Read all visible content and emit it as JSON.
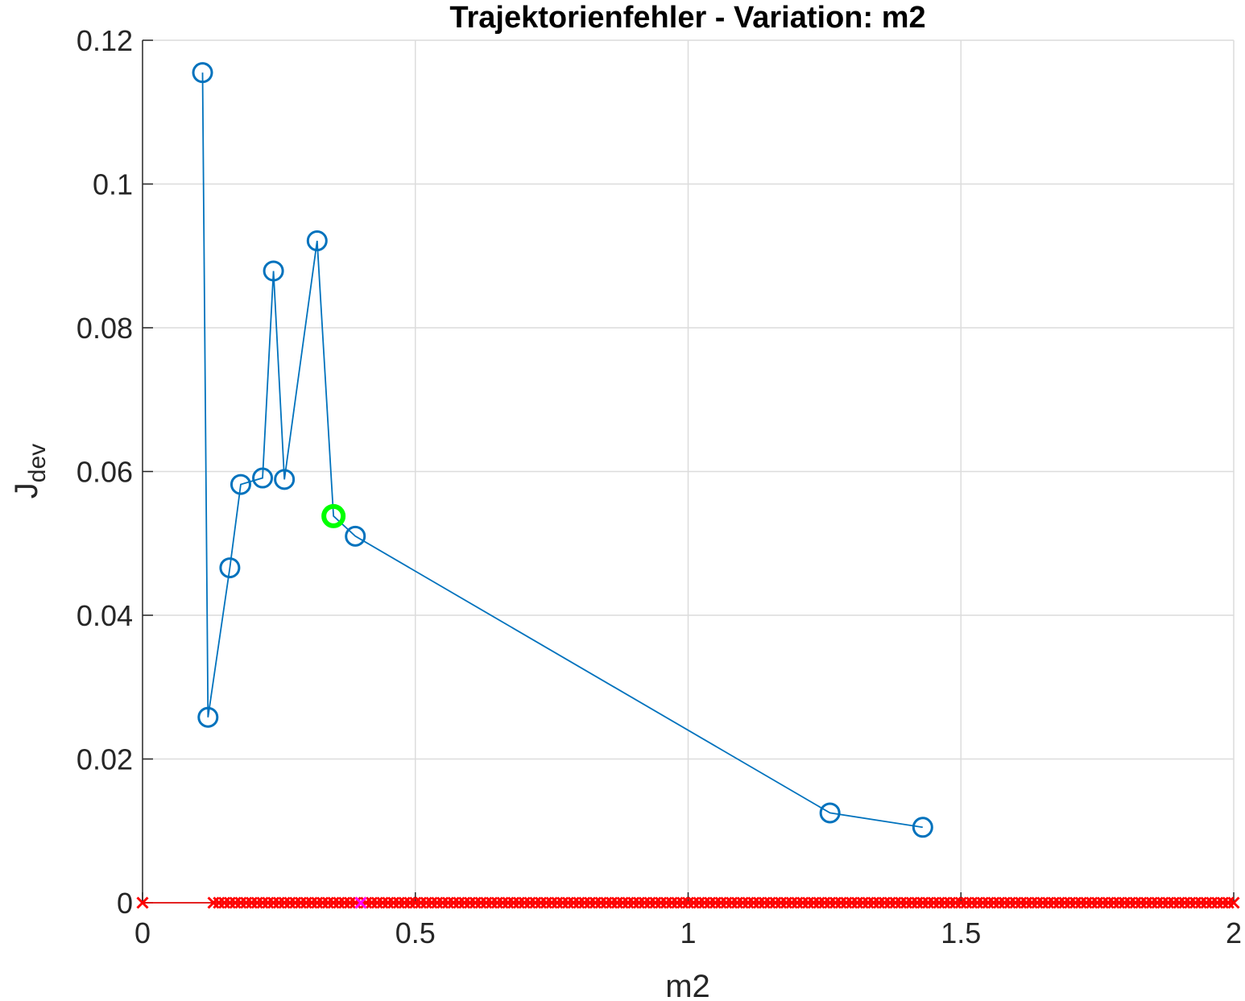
{
  "chart_data": {
    "type": "line",
    "title": "Trajektorienfehler - Variation: m2",
    "xlabel": "m2",
    "ylabel_main": "J",
    "ylabel_sub": "dev",
    "xlim": [
      0,
      2
    ],
    "ylim": [
      0,
      0.12
    ],
    "xticks": [
      0,
      0.5,
      1,
      1.5,
      2
    ],
    "xtick_labels": [
      "0",
      "0.5",
      "1",
      "1.5",
      "2"
    ],
    "yticks": [
      0,
      0.02,
      0.04,
      0.06,
      0.08,
      0.1,
      0.12
    ],
    "ytick_labels": [
      "0",
      "0.02",
      "0.04",
      "0.06",
      "0.08",
      "0.1",
      "0.12"
    ],
    "grid": true,
    "colors": {
      "series": "#0072BD",
      "highlight": "#00FF00",
      "failed": "#FF0000",
      "reference": "#FF00FF",
      "grid": "#DCDCDC",
      "axis": "#262626"
    },
    "series": [
      {
        "name": "J_dev",
        "marker": "o",
        "x": [
          0.11,
          0.12,
          0.16,
          0.18,
          0.22,
          0.24,
          0.26,
          0.32,
          0.35,
          0.39,
          1.26,
          1.43
        ],
        "y": [
          0.1155,
          0.0258,
          0.0466,
          0.0582,
          0.0591,
          0.0879,
          0.0589,
          0.0921,
          0.0538,
          0.051,
          0.0125,
          0.0105
        ]
      }
    ],
    "highlight_point": {
      "x": 0.35,
      "y": 0.0538,
      "marker": "o"
    },
    "failed_points": {
      "marker": "x",
      "y": 0,
      "x_single": [
        0.0
      ],
      "x_range_start": 0.13,
      "x_range_end": 2.0,
      "x_range_step": 0.01
    },
    "reference_point": {
      "x": 0.4,
      "y": 0,
      "marker": "x"
    }
  }
}
